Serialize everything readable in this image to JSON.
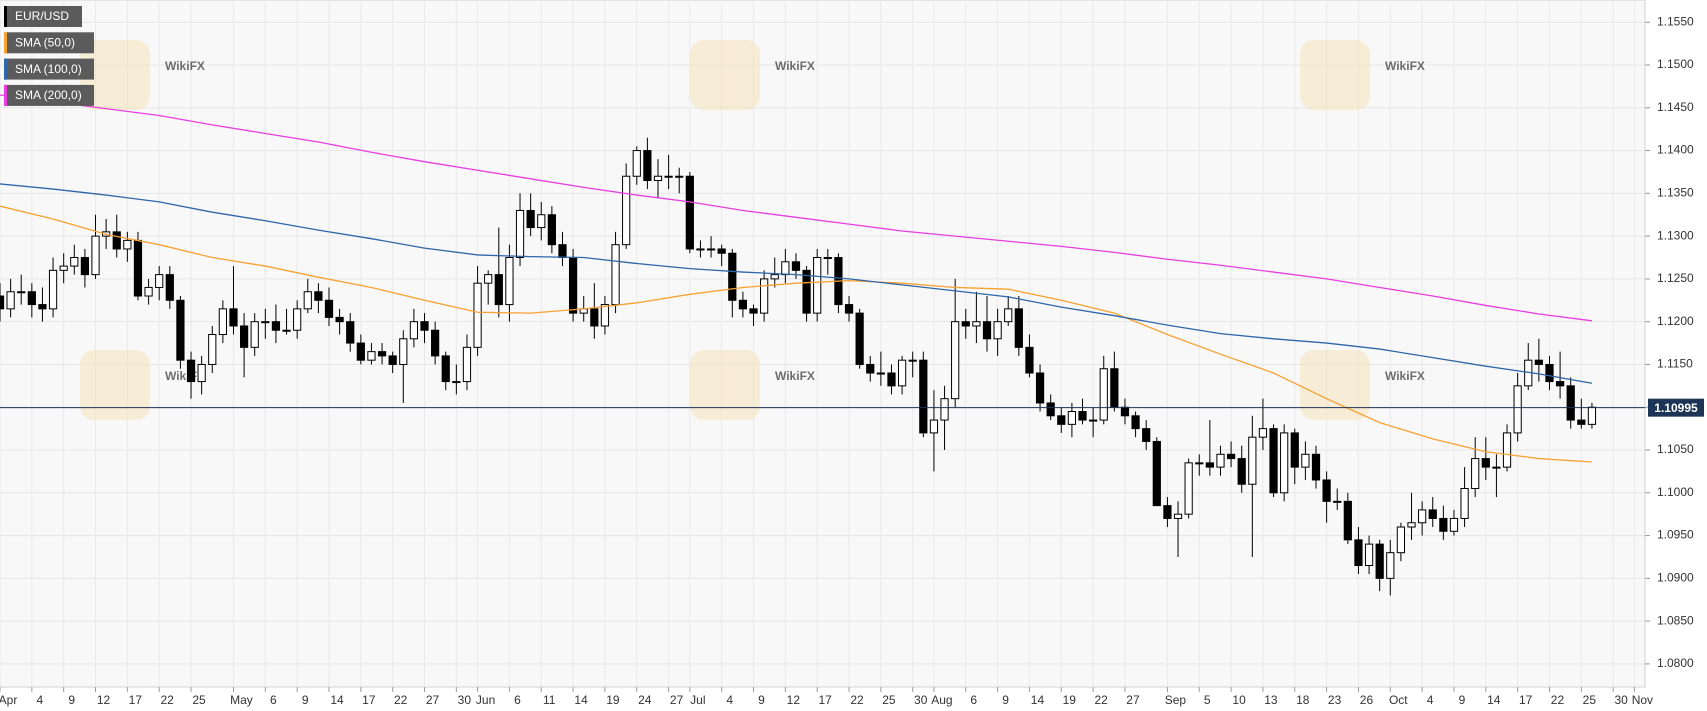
{
  "chart_data": {
    "type": "candlestick",
    "name": "EUR/USD",
    "watermark": "WikiFX",
    "up_color": "#ffffff",
    "down_color": "#000000",
    "outline_color": "#000000",
    "last_price": 1.10995,
    "last_price_color": "#1c3557",
    "candles": [
      [
        1.123,
        1.1245,
        1.12,
        1.1215
      ],
      [
        1.1215,
        1.125,
        1.1205,
        1.1235
      ],
      [
        1.1235,
        1.1255,
        1.122,
        1.1235
      ],
      [
        1.1235,
        1.1245,
        1.1205,
        1.122
      ],
      [
        1.122,
        1.124,
        1.12,
        1.1215
      ],
      [
        1.1215,
        1.1275,
        1.1205,
        1.126
      ],
      [
        1.126,
        1.128,
        1.1245,
        1.1265
      ],
      [
        1.1265,
        1.129,
        1.1255,
        1.1275
      ],
      [
        1.1275,
        1.1285,
        1.124,
        1.1255
      ],
      [
        1.1255,
        1.1325,
        1.125,
        1.13
      ],
      [
        1.13,
        1.132,
        1.1285,
        1.1305
      ],
      [
        1.1305,
        1.1325,
        1.1275,
        1.1285
      ],
      [
        1.1285,
        1.1305,
        1.127,
        1.1295
      ],
      [
        1.1295,
        1.1305,
        1.1225,
        1.123
      ],
      [
        1.123,
        1.125,
        1.122,
        1.124
      ],
      [
        1.124,
        1.1265,
        1.1225,
        1.1255
      ],
      [
        1.1255,
        1.1265,
        1.1215,
        1.1225
      ],
      [
        1.1225,
        1.123,
        1.1145,
        1.1155
      ],
      [
        1.1155,
        1.1165,
        1.111,
        1.113
      ],
      [
        1.113,
        1.116,
        1.1115,
        1.115
      ],
      [
        1.115,
        1.1195,
        1.114,
        1.1185
      ],
      [
        1.1185,
        1.1225,
        1.1175,
        1.1215
      ],
      [
        1.1215,
        1.1265,
        1.1185,
        1.1195
      ],
      [
        1.1195,
        1.121,
        1.1135,
        1.117
      ],
      [
        1.117,
        1.121,
        1.116,
        1.12
      ],
      [
        1.12,
        1.1215,
        1.118,
        1.12
      ],
      [
        1.12,
        1.122,
        1.1175,
        1.119
      ],
      [
        1.119,
        1.1215,
        1.1185,
        1.119
      ],
      [
        1.119,
        1.1225,
        1.118,
        1.1215
      ],
      [
        1.1215,
        1.125,
        1.121,
        1.1235
      ],
      [
        1.1235,
        1.1245,
        1.121,
        1.1225
      ],
      [
        1.1225,
        1.124,
        1.1195,
        1.1205
      ],
      [
        1.1205,
        1.1215,
        1.1185,
        1.12
      ],
      [
        1.12,
        1.121,
        1.1165,
        1.1175
      ],
      [
        1.1175,
        1.1185,
        1.115,
        1.1155
      ],
      [
        1.1155,
        1.1175,
        1.115,
        1.1165
      ],
      [
        1.1165,
        1.1175,
        1.115,
        1.116
      ],
      [
        1.116,
        1.1165,
        1.114,
        1.115
      ],
      [
        1.115,
        1.119,
        1.1105,
        1.118
      ],
      [
        1.118,
        1.1215,
        1.117,
        1.12
      ],
      [
        1.12,
        1.121,
        1.1175,
        1.119
      ],
      [
        1.119,
        1.12,
        1.115,
        1.116
      ],
      [
        1.116,
        1.1165,
        1.112,
        1.113
      ],
      [
        1.113,
        1.115,
        1.1115,
        1.113
      ],
      [
        1.113,
        1.1185,
        1.112,
        1.117
      ],
      [
        1.117,
        1.1265,
        1.116,
        1.1245
      ],
      [
        1.1245,
        1.126,
        1.122,
        1.1255
      ],
      [
        1.1255,
        1.131,
        1.1205,
        1.122
      ],
      [
        1.122,
        1.129,
        1.12,
        1.1275
      ],
      [
        1.1275,
        1.135,
        1.1265,
        1.133
      ],
      [
        1.133,
        1.135,
        1.13,
        1.131
      ],
      [
        1.131,
        1.134,
        1.1295,
        1.1325
      ],
      [
        1.1325,
        1.1335,
        1.128,
        1.129
      ],
      [
        1.129,
        1.1305,
        1.1265,
        1.1275
      ],
      [
        1.1275,
        1.1285,
        1.12,
        1.121
      ],
      [
        1.121,
        1.123,
        1.12,
        1.1215
      ],
      [
        1.1215,
        1.1245,
        1.118,
        1.1195
      ],
      [
        1.1195,
        1.123,
        1.1185,
        1.122
      ],
      [
        1.122,
        1.1305,
        1.121,
        1.129
      ],
      [
        1.129,
        1.1385,
        1.1285,
        1.137
      ],
      [
        1.137,
        1.1405,
        1.136,
        1.14
      ],
      [
        1.14,
        1.1415,
        1.1355,
        1.1365
      ],
      [
        1.1365,
        1.139,
        1.1345,
        1.137
      ],
      [
        1.137,
        1.1395,
        1.1355,
        1.137
      ],
      [
        1.137,
        1.138,
        1.135,
        1.137
      ],
      [
        1.137,
        1.1375,
        1.128,
        1.1285
      ],
      [
        1.1285,
        1.1295,
        1.1275,
        1.1285
      ],
      [
        1.1285,
        1.13,
        1.1275,
        1.1285
      ],
      [
        1.1285,
        1.129,
        1.1265,
        1.128
      ],
      [
        1.128,
        1.1285,
        1.1205,
        1.1225
      ],
      [
        1.1225,
        1.1235,
        1.1205,
        1.1215
      ],
      [
        1.1215,
        1.122,
        1.1195,
        1.121
      ],
      [
        1.121,
        1.126,
        1.12,
        1.125
      ],
      [
        1.125,
        1.1275,
        1.124,
        1.1255
      ],
      [
        1.1255,
        1.1285,
        1.1245,
        1.127
      ],
      [
        1.127,
        1.128,
        1.125,
        1.126
      ],
      [
        1.126,
        1.1265,
        1.12,
        1.121
      ],
      [
        1.121,
        1.1285,
        1.12,
        1.1275
      ],
      [
        1.1275,
        1.1285,
        1.1255,
        1.1275
      ],
      [
        1.1275,
        1.128,
        1.121,
        1.122
      ],
      [
        1.122,
        1.123,
        1.12,
        1.121
      ],
      [
        1.121,
        1.1215,
        1.1145,
        1.115
      ],
      [
        1.115,
        1.116,
        1.113,
        1.114
      ],
      [
        1.114,
        1.1165,
        1.1125,
        1.114
      ],
      [
        1.114,
        1.115,
        1.1115,
        1.1125
      ],
      [
        1.1125,
        1.116,
        1.1115,
        1.1155
      ],
      [
        1.1155,
        1.1165,
        1.1135,
        1.1155
      ],
      [
        1.1155,
        1.1165,
        1.1065,
        1.107
      ],
      [
        1.107,
        1.112,
        1.1025,
        1.1085
      ],
      [
        1.1085,
        1.1125,
        1.105,
        1.111
      ],
      [
        1.111,
        1.125,
        1.11,
        1.12
      ],
      [
        1.12,
        1.1215,
        1.118,
        1.1195
      ],
      [
        1.1195,
        1.1235,
        1.1175,
        1.12
      ],
      [
        1.12,
        1.123,
        1.1165,
        1.118
      ],
      [
        1.118,
        1.1215,
        1.116,
        1.12
      ],
      [
        1.12,
        1.123,
        1.1195,
        1.1215
      ],
      [
        1.1215,
        1.123,
        1.116,
        1.117
      ],
      [
        1.117,
        1.1185,
        1.1135,
        1.114
      ],
      [
        1.114,
        1.115,
        1.1095,
        1.1105
      ],
      [
        1.1105,
        1.1115,
        1.1085,
        1.109
      ],
      [
        1.109,
        1.11,
        1.107,
        1.108
      ],
      [
        1.108,
        1.1105,
        1.1065,
        1.1095
      ],
      [
        1.1095,
        1.111,
        1.108,
        1.1085
      ],
      [
        1.1085,
        1.11,
        1.1065,
        1.1085
      ],
      [
        1.1085,
        1.116,
        1.108,
        1.1145
      ],
      [
        1.1145,
        1.1165,
        1.1095,
        1.11
      ],
      [
        1.11,
        1.111,
        1.108,
        1.109
      ],
      [
        1.109,
        1.1095,
        1.1065,
        1.1075
      ],
      [
        1.1075,
        1.1085,
        1.105,
        1.106
      ],
      [
        1.106,
        1.1065,
        1.0985,
        1.0985
      ],
      [
        1.0985,
        1.0995,
        1.096,
        1.097
      ],
      [
        1.097,
        1.099,
        1.0925,
        1.0975
      ],
      [
        1.0975,
        1.104,
        1.097,
        1.1035
      ],
      [
        1.1035,
        1.1045,
        1.102,
        1.1035
      ],
      [
        1.1035,
        1.1085,
        1.102,
        1.103
      ],
      [
        1.103,
        1.1055,
        1.102,
        1.1045
      ],
      [
        1.1045,
        1.106,
        1.103,
        1.104
      ],
      [
        1.104,
        1.1055,
        1.1,
        1.101
      ],
      [
        1.101,
        1.109,
        1.0925,
        1.1065
      ],
      [
        1.1065,
        1.111,
        1.105,
        1.1075
      ],
      [
        1.1075,
        1.108,
        1.0995,
        1.1
      ],
      [
        1.1,
        1.108,
        1.099,
        1.107
      ],
      [
        1.107,
        1.1075,
        1.101,
        1.103
      ],
      [
        1.103,
        1.106,
        1.1015,
        1.1045
      ],
      [
        1.1045,
        1.1055,
        1.1005,
        1.1015
      ],
      [
        1.1015,
        1.1025,
        1.0965,
        1.099
      ],
      [
        1.099,
        1.1005,
        1.098,
        1.099
      ],
      [
        1.099,
        1.1,
        1.094,
        1.0945
      ],
      [
        1.0945,
        1.096,
        1.0905,
        1.0915
      ],
      [
        1.0915,
        1.095,
        1.0905,
        1.094
      ],
      [
        1.094,
        1.0945,
        1.0885,
        1.09
      ],
      [
        1.09,
        1.0945,
        1.088,
        1.093
      ],
      [
        1.093,
        1.0965,
        1.092,
        1.096
      ],
      [
        1.096,
        1.1,
        1.0945,
        1.0965
      ],
      [
        1.0965,
        1.099,
        1.095,
        1.098
      ],
      [
        1.098,
        1.0995,
        1.096,
        1.097
      ],
      [
        1.097,
        1.0985,
        1.0945,
        1.0955
      ],
      [
        1.0955,
        1.098,
        1.095,
        1.097
      ],
      [
        1.097,
        1.103,
        1.096,
        1.1005
      ],
      [
        1.1005,
        1.1065,
        1.0995,
        1.104
      ],
      [
        1.104,
        1.1065,
        1.1015,
        1.103
      ],
      [
        1.103,
        1.1045,
        1.0995,
        1.103
      ],
      [
        1.103,
        1.108,
        1.1025,
        1.107
      ],
      [
        1.107,
        1.114,
        1.106,
        1.1125
      ],
      [
        1.1125,
        1.1175,
        1.112,
        1.1155
      ],
      [
        1.1155,
        1.118,
        1.113,
        1.115
      ],
      [
        1.115,
        1.116,
        1.112,
        1.113
      ],
      [
        1.113,
        1.1165,
        1.111,
        1.1125
      ],
      [
        1.1125,
        1.1135,
        1.1075,
        1.1085
      ],
      [
        1.1085,
        1.111,
        1.1075,
        1.108
      ],
      [
        1.108,
        1.1105,
        1.1075,
        1.11
      ]
    ],
    "overlays": [
      {
        "name": "SMA (50,0)",
        "color": "#f7a131",
        "x": [
          0,
          5,
          10,
          15,
          20,
          25,
          30,
          35,
          40,
          45,
          50,
          55,
          60,
          65,
          70,
          75,
          80,
          85,
          90,
          95,
          100,
          105,
          110,
          115,
          120,
          125,
          130,
          135,
          140,
          145,
          150
        ],
        "values": [
          1.1335,
          1.132,
          1.1302,
          1.129,
          1.1275,
          1.1265,
          1.1252,
          1.124,
          1.1225,
          1.1211,
          1.121,
          1.1215,
          1.1222,
          1.1232,
          1.124,
          1.1245,
          1.1248,
          1.1245,
          1.124,
          1.1238,
          1.1225,
          1.121,
          1.1185,
          1.1162,
          1.114,
          1.111,
          1.1082,
          1.1063,
          1.1048,
          1.104,
          1.1036
        ]
      },
      {
        "name": "SMA (100,0)",
        "color": "#2e66a8",
        "x": [
          0,
          5,
          10,
          15,
          20,
          25,
          30,
          35,
          40,
          45,
          50,
          55,
          60,
          65,
          70,
          75,
          80,
          85,
          90,
          95,
          100,
          105,
          110,
          115,
          120,
          125,
          130,
          135,
          140,
          145,
          150
        ],
        "values": [
          1.1361,
          1.1355,
          1.1348,
          1.134,
          1.1328,
          1.1318,
          1.1307,
          1.1297,
          1.1286,
          1.1278,
          1.1276,
          1.1275,
          1.1268,
          1.1262,
          1.1258,
          1.1255,
          1.125,
          1.1243,
          1.1236,
          1.1229,
          1.1217,
          1.1207,
          1.1196,
          1.1186,
          1.118,
          1.1175,
          1.1168,
          1.1158,
          1.1148,
          1.1139,
          1.1128
        ]
      },
      {
        "name": "SMA (200,0)",
        "color": "#e83de0",
        "x": [
          0,
          5,
          10,
          15,
          20,
          25,
          30,
          35,
          40,
          45,
          50,
          55,
          60,
          65,
          70,
          75,
          80,
          85,
          90,
          95,
          100,
          105,
          110,
          115,
          120,
          125,
          130,
          135,
          140,
          145,
          150
        ],
        "values": [
          1.1465,
          1.1457,
          1.1449,
          1.1441,
          1.143,
          1.142,
          1.141,
          1.1398,
          1.1387,
          1.1377,
          1.1367,
          1.1357,
          1.1348,
          1.134,
          1.133,
          1.1322,
          1.1314,
          1.1306,
          1.13,
          1.1294,
          1.1288,
          1.1281,
          1.1273,
          1.1266,
          1.1258,
          1.125,
          1.124,
          1.123,
          1.1219,
          1.1209,
          1.1201
        ]
      }
    ],
    "xlim": [
      0,
      155
    ],
    "xticks": [
      {
        "value": 0,
        "label": "Apr"
      },
      {
        "value": 3,
        "label": "4"
      },
      {
        "value": 6,
        "label": "9"
      },
      {
        "value": 9,
        "label": "12"
      },
      {
        "value": 12,
        "label": "17"
      },
      {
        "value": 15,
        "label": "22"
      },
      {
        "value": 18,
        "label": "25"
      },
      {
        "value": 22,
        "label": "May"
      },
      {
        "value": 25,
        "label": "6"
      },
      {
        "value": 28,
        "label": "9"
      },
      {
        "value": 31,
        "label": "14"
      },
      {
        "value": 34,
        "label": "17"
      },
      {
        "value": 37,
        "label": "22"
      },
      {
        "value": 40,
        "label": "27"
      },
      {
        "value": 43,
        "label": "30"
      },
      {
        "value": 45,
        "label": "Jun"
      },
      {
        "value": 48,
        "label": "6"
      },
      {
        "value": 51,
        "label": "11"
      },
      {
        "value": 54,
        "label": "14"
      },
      {
        "value": 57,
        "label": "19"
      },
      {
        "value": 60,
        "label": "24"
      },
      {
        "value": 63,
        "label": "27"
      },
      {
        "value": 65,
        "label": "Jul"
      },
      {
        "value": 68,
        "label": "4"
      },
      {
        "value": 71,
        "label": "9"
      },
      {
        "value": 74,
        "label": "12"
      },
      {
        "value": 77,
        "label": "17"
      },
      {
        "value": 80,
        "label": "22"
      },
      {
        "value": 83,
        "label": "25"
      },
      {
        "value": 86,
        "label": "30"
      },
      {
        "value": 88,
        "label": "Aug"
      },
      {
        "value": 91,
        "label": "6"
      },
      {
        "value": 94,
        "label": "9"
      },
      {
        "value": 97,
        "label": "14"
      },
      {
        "value": 100,
        "label": "19"
      },
      {
        "value": 103,
        "label": "22"
      },
      {
        "value": 106,
        "label": "27"
      },
      {
        "value": 110,
        "label": "Sep"
      },
      {
        "value": 113,
        "label": "5"
      },
      {
        "value": 116,
        "label": "10"
      },
      {
        "value": 119,
        "label": "13"
      },
      {
        "value": 122,
        "label": "18"
      },
      {
        "value": 125,
        "label": "23"
      },
      {
        "value": 128,
        "label": "26"
      },
      {
        "value": 131,
        "label": "Oct"
      },
      {
        "value": 134,
        "label": "4"
      },
      {
        "value": 137,
        "label": "9"
      },
      {
        "value": 140,
        "label": "14"
      },
      {
        "value": 143,
        "label": "17"
      },
      {
        "value": 146,
        "label": "22"
      },
      {
        "value": 149,
        "label": "25"
      },
      {
        "value": 152,
        "label": "30"
      },
      {
        "value": 154,
        "label": "Nov"
      }
    ],
    "ylim": [
      1.0773,
      1.1576
    ],
    "yticks": [
      {
        "value": 1.08,
        "label": "1.0800"
      },
      {
        "value": 1.085,
        "label": "1.0850"
      },
      {
        "value": 1.09,
        "label": "1.0900"
      },
      {
        "value": 1.095,
        "label": "1.0950"
      },
      {
        "value": 1.1,
        "label": "1.1000"
      },
      {
        "value": 1.105,
        "label": "1.1050"
      },
      {
        "value": 1.11,
        "label": "1.1100"
      },
      {
        "value": 1.115,
        "label": "1.1150"
      },
      {
        "value": 1.12,
        "label": "1.1200"
      },
      {
        "value": 1.125,
        "label": "1.1250"
      },
      {
        "value": 1.13,
        "label": "1.1300"
      },
      {
        "value": 1.135,
        "label": "1.1350"
      },
      {
        "value": 1.14,
        "label": "1.1400"
      },
      {
        "value": 1.145,
        "label": "1.1450"
      },
      {
        "value": 1.15,
        "label": "1.1500"
      },
      {
        "value": 1.155,
        "label": "1.1550"
      }
    ],
    "grid": true
  }
}
